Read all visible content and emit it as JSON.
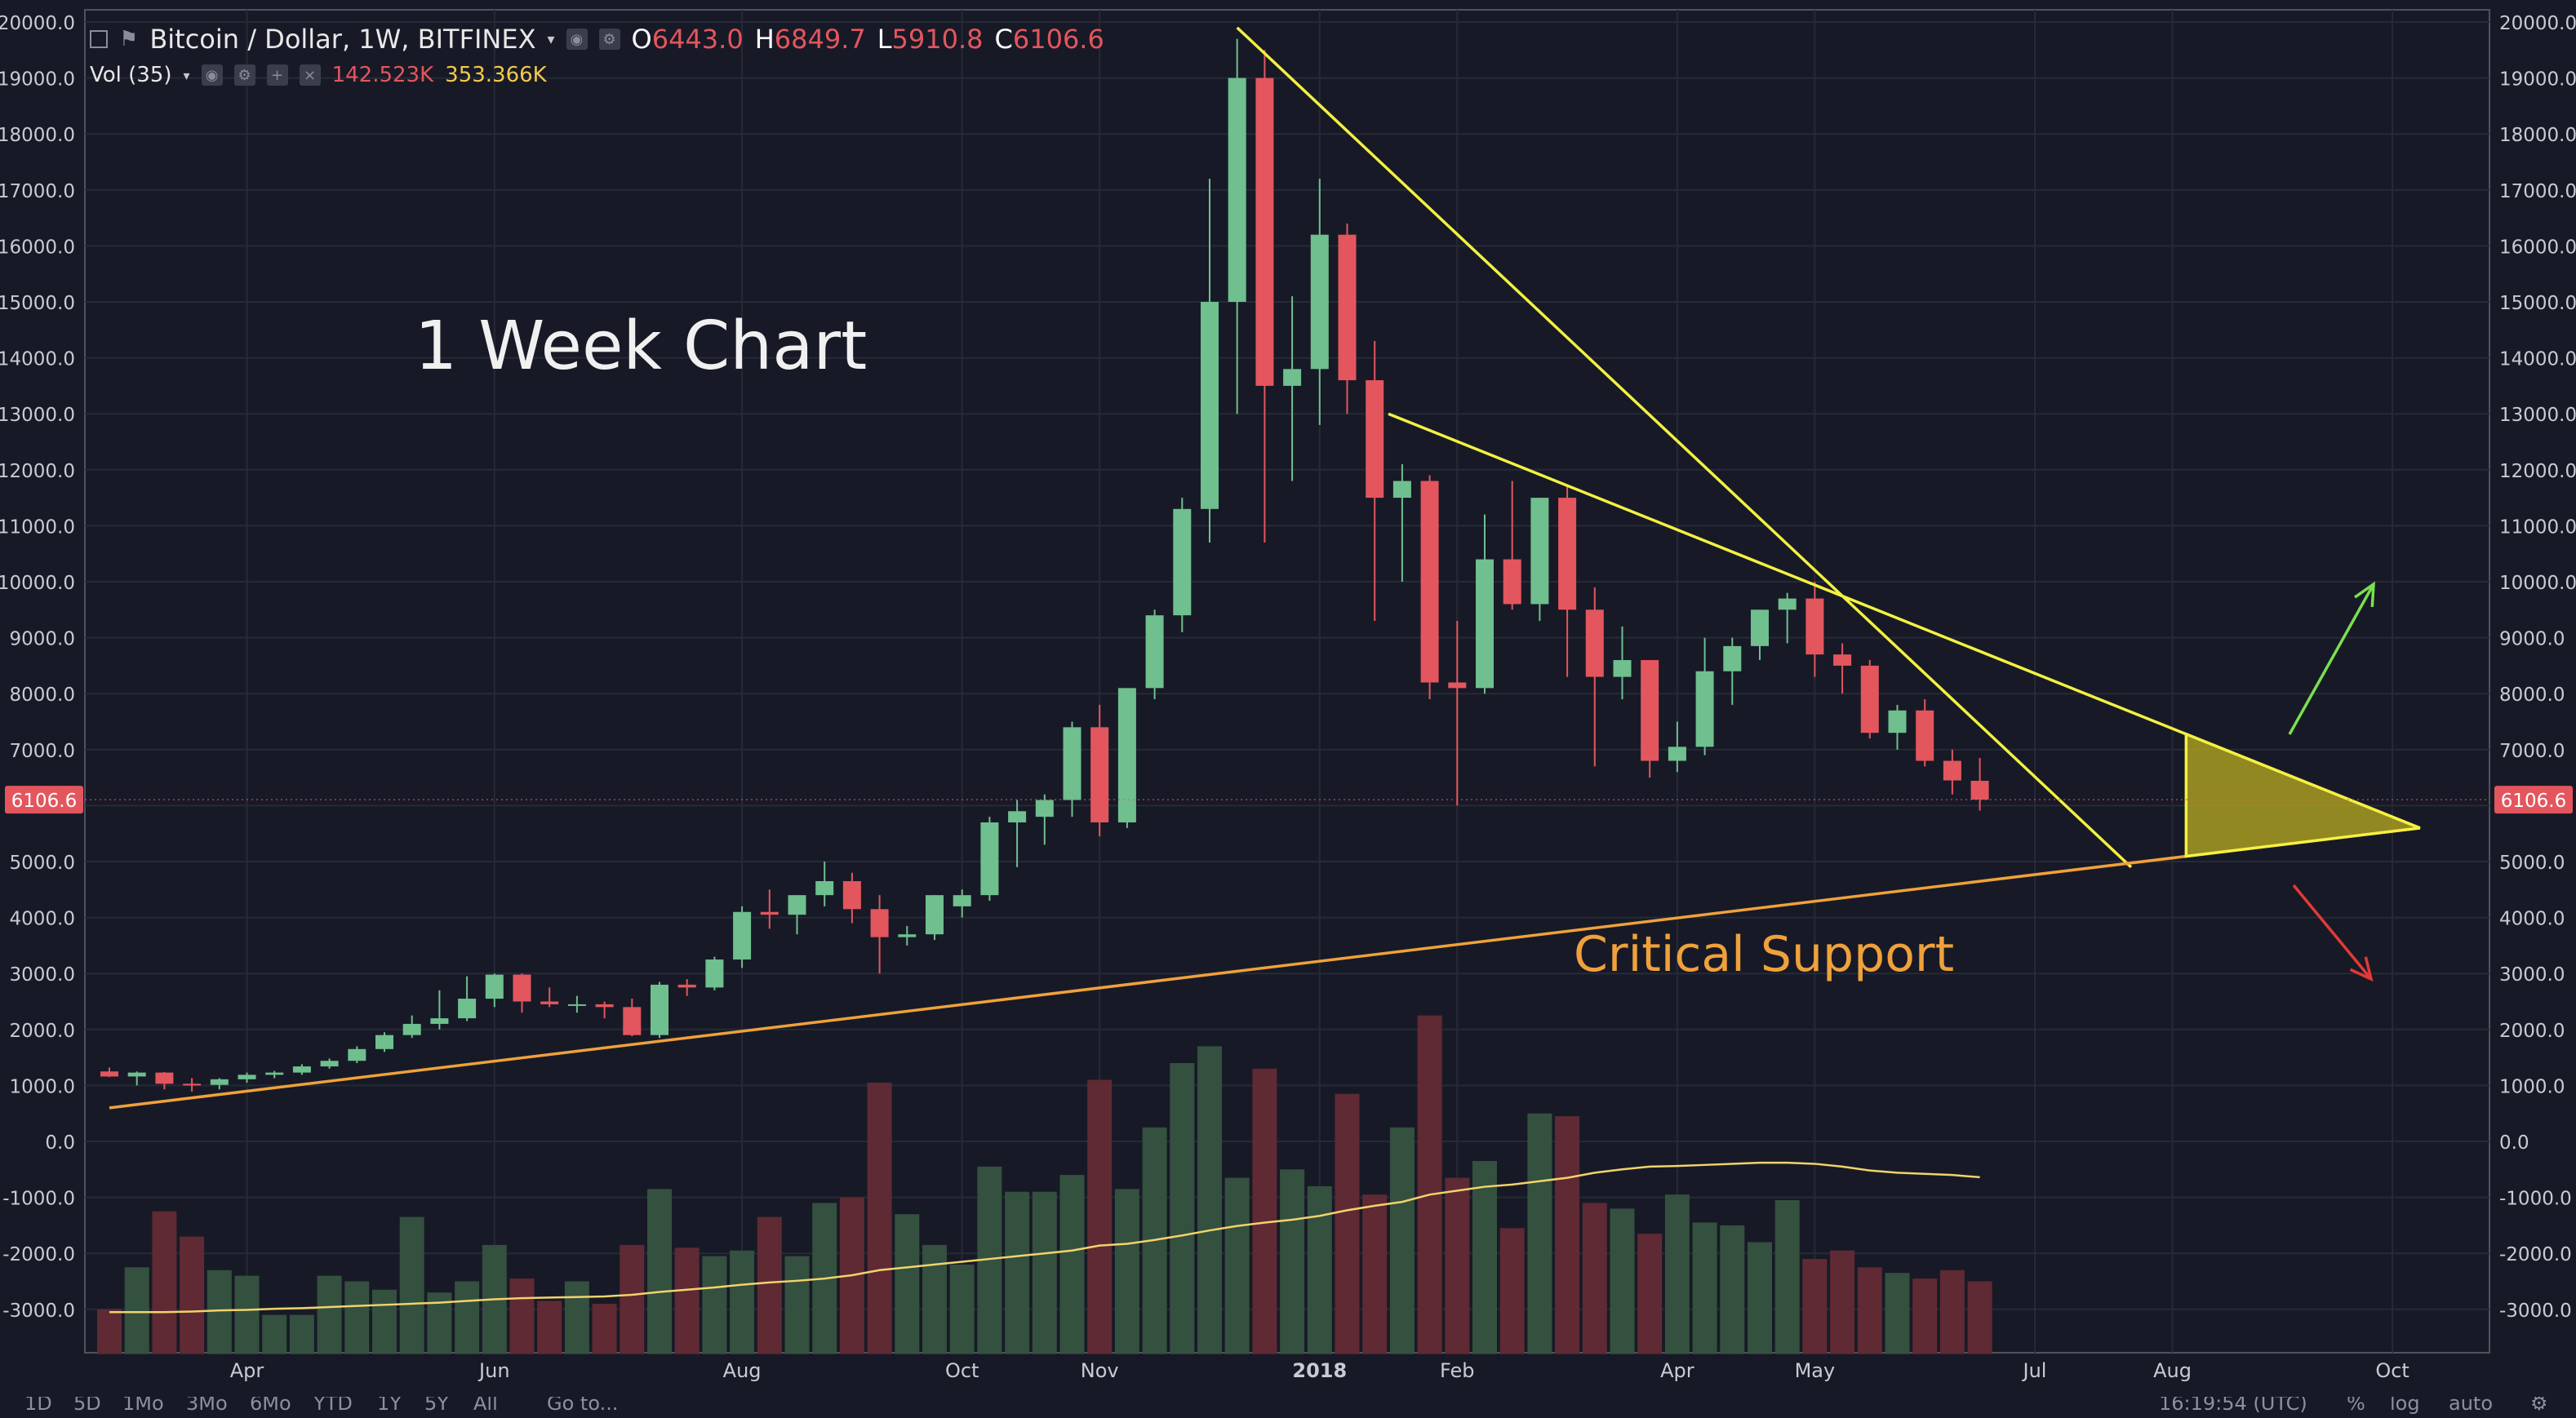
{
  "header": {
    "symbol": "Bitcoin / Dollar, 1W, BITFINEX",
    "open_label": "O",
    "open": "6443.0",
    "high_label": "H",
    "high": "6849.7",
    "low_label": "L",
    "low": "5910.8",
    "close_label": "C",
    "close": "6106.6",
    "volume_label": "Vol (35)",
    "volume_value": "142.523K",
    "volume_ma": "353.366K"
  },
  "annotations": {
    "title": "1 Week Chart",
    "support": "Critical Support",
    "price_tag": "6106.6"
  },
  "bottom_bar": {
    "ranges": [
      "1D",
      "5D",
      "1Mo",
      "3Mo",
      "6Mo",
      "YTD",
      "1Y",
      "5Y",
      "All"
    ],
    "goto": "Go to...",
    "time": "16:19:54 (UTC)",
    "percent": "%",
    "log": "log",
    "auto": "auto"
  },
  "colors": {
    "background": "#171a26",
    "up": "#6fbf8f",
    "down": "#e3565e",
    "up_volume": "#34503f",
    "down_volume": "#5f2a33",
    "trendline": "#f4f142",
    "support": "#f0a13c",
    "arrow_up": "#7ae04f",
    "arrow_down": "#e23a36",
    "triangle_fill": "#a89c22"
  },
  "chart_data": {
    "type": "candlestick",
    "title": "Bitcoin / Dollar, 1W, BITFINEX",
    "y_ticks": [
      -3000,
      -2000,
      -1000,
      0,
      1000,
      2000,
      3000,
      4000,
      5000,
      6000,
      7000,
      8000,
      9000,
      10000,
      11000,
      12000,
      13000,
      14000,
      15000,
      16000,
      17000,
      18000,
      19000,
      20000
    ],
    "y_tick_format": "0.0",
    "ylim": [
      -3800,
      20000
    ],
    "x_ticks": [
      {
        "label": "Apr",
        "i": 5
      },
      {
        "label": "Jun",
        "i": 14
      },
      {
        "label": "Aug",
        "i": 23
      },
      {
        "label": "Oct",
        "i": 31
      },
      {
        "label": "Nov",
        "i": 36
      },
      {
        "label": "2018",
        "i": 44
      },
      {
        "label": "Feb",
        "i": 49
      },
      {
        "label": "Apr",
        "i": 57
      },
      {
        "label": "May",
        "i": 62
      },
      {
        "label": "Jul",
        "i": 70
      },
      {
        "label": "Aug",
        "i": 75
      },
      {
        "label": "Oct",
        "i": 83
      }
    ],
    "candles": [
      [
        1250,
        1320,
        1150,
        1160
      ],
      [
        1160,
        1250,
        1000,
        1230
      ],
      [
        1230,
        1240,
        930,
        1030
      ],
      [
        1030,
        1130,
        890,
        1000
      ],
      [
        1010,
        1130,
        930,
        1110
      ],
      [
        1110,
        1230,
        1050,
        1190
      ],
      [
        1190,
        1260,
        1130,
        1230
      ],
      [
        1230,
        1380,
        1190,
        1340
      ],
      [
        1340,
        1480,
        1300,
        1440
      ],
      [
        1440,
        1700,
        1400,
        1650
      ],
      [
        1650,
        1950,
        1600,
        1900
      ],
      [
        1900,
        2250,
        1850,
        2100
      ],
      [
        2100,
        2700,
        2000,
        2200
      ],
      [
        2200,
        2950,
        2150,
        2550
      ],
      [
        2550,
        3000,
        2400,
        2980
      ],
      [
        2980,
        3000,
        2300,
        2500
      ],
      [
        2500,
        2750,
        2400,
        2450
      ],
      [
        2450,
        2600,
        2300,
        2450
      ],
      [
        2450,
        2500,
        2200,
        2400
      ],
      [
        2400,
        2550,
        1880,
        1900
      ],
      [
        1900,
        2850,
        1850,
        2800
      ],
      [
        2800,
        2900,
        2600,
        2750
      ],
      [
        2750,
        3300,
        2700,
        3250
      ],
      [
        3250,
        4200,
        3100,
        4100
      ],
      [
        4100,
        4500,
        3800,
        4050
      ],
      [
        4050,
        4400,
        3700,
        4400
      ],
      [
        4400,
        5000,
        4200,
        4650
      ],
      [
        4650,
        4800,
        3900,
        4150
      ],
      [
        4150,
        4400,
        3000,
        3650
      ],
      [
        3650,
        3850,
        3500,
        3700
      ],
      [
        3700,
        4400,
        3600,
        4400
      ],
      [
        4200,
        4500,
        4000,
        4400
      ],
      [
        4400,
        5800,
        4300,
        5700
      ],
      [
        5700,
        6100,
        4900,
        5900
      ],
      [
        5800,
        6200,
        5300,
        6100
      ],
      [
        6100,
        7500,
        5800,
        7400
      ],
      [
        7400,
        7800,
        5450,
        5700
      ],
      [
        5700,
        8100,
        5600,
        8100
      ],
      [
        8100,
        9500,
        7900,
        9400
      ],
      [
        9400,
        11500,
        9100,
        11300
      ],
      [
        11300,
        17200,
        10700,
        15000
      ],
      [
        15000,
        19700,
        13000,
        19000
      ],
      [
        19000,
        19500,
        10700,
        13500
      ],
      [
        13500,
        15100,
        11800,
        13800
      ],
      [
        13800,
        17200,
        12800,
        16200
      ],
      [
        16200,
        16400,
        13000,
        13600
      ],
      [
        13600,
        14300,
        9300,
        11500
      ],
      [
        11500,
        12100,
        10000,
        11800
      ],
      [
        11800,
        11900,
        7900,
        8200
      ],
      [
        8200,
        9300,
        6000,
        8100
      ],
      [
        8100,
        11200,
        8000,
        10400
      ],
      [
        10400,
        11800,
        9500,
        9600
      ],
      [
        9600,
        11500,
        9300,
        11500
      ],
      [
        11500,
        11700,
        8300,
        9500
      ],
      [
        9500,
        9900,
        6700,
        8300
      ],
      [
        8300,
        9200,
        7900,
        8600
      ],
      [
        8600,
        8600,
        6500,
        6800
      ],
      [
        6800,
        7500,
        6600,
        7050
      ],
      [
        7050,
        9000,
        6900,
        8400
      ],
      [
        8400,
        9000,
        7800,
        8850
      ],
      [
        8850,
        9500,
        8600,
        9500
      ],
      [
        9500,
        9800,
        8900,
        9700
      ],
      [
        9700,
        10000,
        8300,
        8700
      ],
      [
        8700,
        8900,
        8000,
        8500
      ],
      [
        8500,
        8600,
        7200,
        7300
      ],
      [
        7300,
        7800,
        7000,
        7700
      ],
      [
        7700,
        7900,
        6700,
        6800
      ],
      [
        6800,
        7000,
        6200,
        6450
      ],
      [
        6443.0,
        6849.7,
        5910.8,
        6106.6
      ]
    ],
    "volume": {
      "label": "Vol (35)",
      "note": "plotted on the same price axis; bars start at the axis floor",
      "values": [
        -3000,
        -2250,
        -1250,
        -1700,
        -2300,
        -2400,
        -3100,
        -3100,
        -2400,
        -2500,
        -2650,
        -1350,
        -2700,
        -2500,
        -1850,
        -2450,
        -2850,
        -2500,
        -2900,
        -1850,
        -850,
        -1900,
        -2050,
        -1950,
        -1350,
        -2050,
        -1100,
        -1000,
        1050,
        -1300,
        -1850,
        -2200,
        -450,
        -900,
        -900,
        -600,
        1100,
        -850,
        250,
        1400,
        1700,
        -650,
        1300,
        -500,
        -800,
        850,
        -950,
        250,
        2250,
        -650,
        -350,
        -1550,
        500,
        450,
        -1100,
        -1200,
        -1650,
        -950,
        -1450,
        -1500,
        -1800,
        -1050,
        -2100,
        -1950,
        -2250,
        -2350,
        -2450,
        -2300,
        -2500
      ],
      "ma": [
        -3050,
        -3050,
        -3050,
        -3040,
        -3020,
        -3010,
        -2990,
        -2980,
        -2960,
        -2940,
        -2920,
        -2900,
        -2880,
        -2850,
        -2820,
        -2800,
        -2790,
        -2780,
        -2770,
        -2740,
        -2690,
        -2650,
        -2610,
        -2560,
        -2520,
        -2490,
        -2450,
        -2390,
        -2300,
        -2250,
        -2200,
        -2150,
        -2100,
        -2050,
        -2000,
        -1950,
        -1860,
        -1830,
        -1760,
        -1680,
        -1590,
        -1510,
        -1450,
        -1400,
        -1330,
        -1230,
        -1150,
        -1080,
        -950,
        -880,
        -810,
        -770,
        -710,
        -650,
        -560,
        -500,
        -450,
        -440,
        -420,
        -400,
        -380,
        -380,
        -400,
        -450,
        -520,
        -560,
        -580,
        -600,
        -640
      ]
    },
    "trendlines": [
      {
        "name": "downtrend-1",
        "from": [
          41,
          19900
        ],
        "to": [
          73.5,
          4900
        ]
      },
      {
        "name": "downtrend-2",
        "from": [
          46.5,
          13000
        ],
        "to": [
          84,
          5600
        ]
      },
      {
        "name": "support",
        "from": [
          0,
          600
        ],
        "to": [
          84,
          5600
        ]
      }
    ],
    "last_price": 6106.6
  }
}
